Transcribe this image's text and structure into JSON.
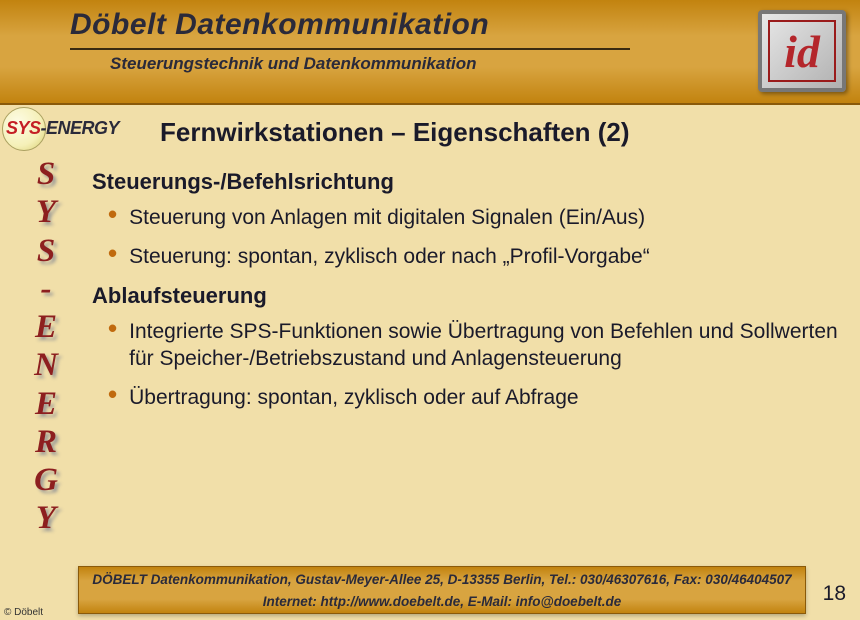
{
  "colors": {
    "header_gradient_from": "#c2830f",
    "header_gradient_mid": "#d8a440",
    "body_bg": "#f1dfa9",
    "bullet_dot": "#c06a0e",
    "brand_red": "#8d1f1f",
    "logo_red": "#b4262b",
    "text": "#1a1a2a"
  },
  "header": {
    "title": "Döbelt Datenkommunikation",
    "subtitle": "Steuerungstechnik und Datenkommunikation",
    "logo_text": "id"
  },
  "badge": {
    "left": "SYS",
    "right": "-ENERGY"
  },
  "vertical_brand": [
    "S",
    "Y",
    "S",
    "-",
    "E",
    "N",
    "E",
    "R",
    "G",
    "Y"
  ],
  "slide": {
    "title": "Fernwirkstationen – Eigenschaften (2)",
    "sections": [
      {
        "heading": "Steuerungs-/Befehlsrichtung",
        "bullets": [
          "Steuerung von Anlagen mit digitalen Signalen (Ein/Aus)",
          "Steuerung: spontan, zyklisch oder nach „Profil-Vorgabe“"
        ]
      },
      {
        "heading": "Ablaufsteuerung",
        "bullets": [
          "Integrierte SPS-Funktionen sowie Übertragung von Befehlen und Sollwerten für Speicher-/Betriebszustand und Anlagensteuerung",
          "Übertragung: spontan, zyklisch oder auf Abfrage"
        ]
      }
    ]
  },
  "footer": {
    "line1": "DÖBELT Datenkommunikation, Gustav-Meyer-Allee 25, D-13355 Berlin, Tel.: 030/46307616, Fax: 030/46404507",
    "line2": "Internet: http://www.doebelt.de, E-Mail: info@doebelt.de",
    "copyright": "© Döbelt",
    "page_number": "18"
  }
}
